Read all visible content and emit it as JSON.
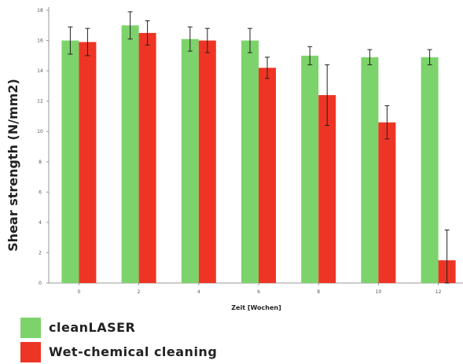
{
  "chart_data": {
    "type": "bar",
    "categories": [
      "0",
      "2",
      "4",
      "6",
      "8",
      "10",
      "12"
    ],
    "series": [
      {
        "name": "cleanLASER",
        "color": "#7dd36b",
        "values": [
          16.0,
          17.0,
          16.1,
          16.0,
          15.0,
          14.9,
          14.9
        ],
        "error": [
          0.9,
          0.9,
          0.8,
          0.8,
          0.6,
          0.5,
          0.5
        ]
      },
      {
        "name": "Wet-chemical cleaning",
        "color": "#ee3525",
        "values": [
          15.9,
          16.5,
          16.0,
          14.2,
          12.4,
          10.6,
          1.5
        ],
        "error": [
          0.9,
          0.8,
          0.8,
          0.7,
          2.0,
          1.1,
          2.0
        ]
      }
    ],
    "yticks": [
      "0",
      "2",
      "4",
      "6",
      "8",
      "10",
      "12",
      "14",
      "16",
      "18"
    ],
    "ylim": [
      0,
      18
    ],
    "xlabel": "Zeit [Wochen]",
    "ylabel": "Shear strength (N/mm2)",
    "grid": false,
    "legend_placement": "bottom-left"
  }
}
